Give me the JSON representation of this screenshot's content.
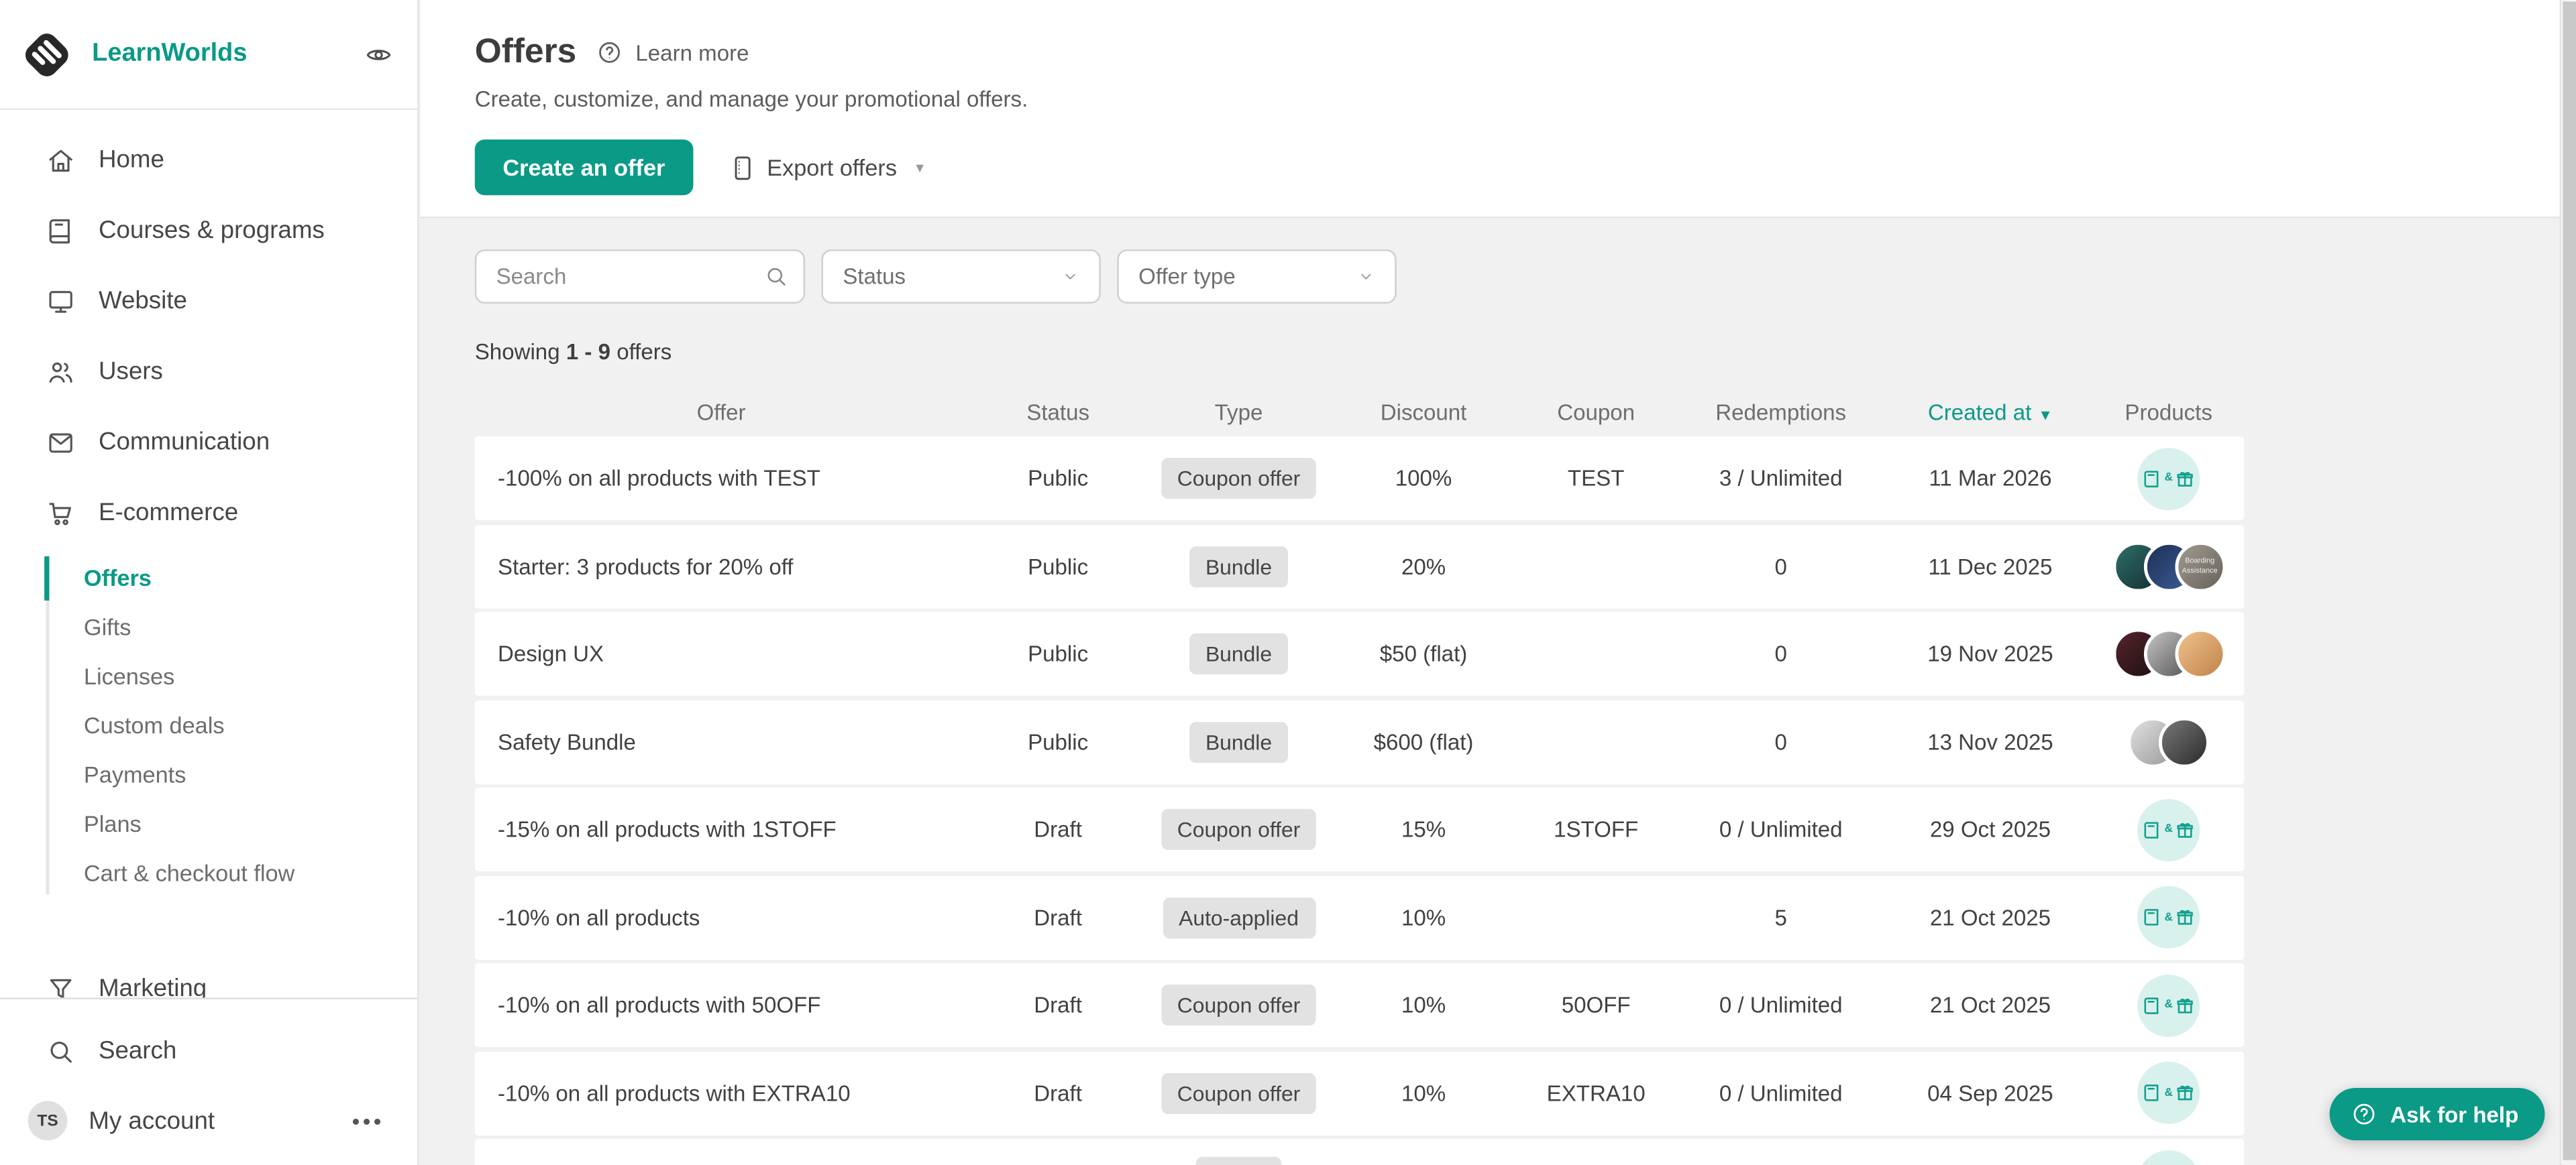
{
  "colors": {
    "accent": "#0a9a86",
    "accent_light": "#d9f1ed",
    "page_bg": "#f1f1f2",
    "badge_bg": "#e2e2e2",
    "text_dark": "#414141",
    "text_gray": "#6e6e6e"
  },
  "sidebar": {
    "brand": "LearnWorlds",
    "nav": [
      {
        "label": "Home",
        "icon": "home"
      },
      {
        "label": "Courses & programs",
        "icon": "book"
      },
      {
        "label": "Website",
        "icon": "monitor"
      },
      {
        "label": "Users",
        "icon": "users"
      },
      {
        "label": "Communication",
        "icon": "mail"
      },
      {
        "label": "E-commerce",
        "icon": "cart"
      }
    ],
    "ecommerce_submenu": [
      {
        "label": "Offers",
        "active": true
      },
      {
        "label": "Gifts",
        "active": false
      },
      {
        "label": "Licenses",
        "active": false
      },
      {
        "label": "Custom deals",
        "active": false
      },
      {
        "label": "Payments",
        "active": false
      },
      {
        "label": "Plans",
        "active": false
      },
      {
        "label": "Cart & checkout flow",
        "active": false
      }
    ],
    "marketing": {
      "label": "Marketing",
      "icon": "funnel"
    },
    "search_label": "Search",
    "account": {
      "initials": "TS",
      "label": "My account"
    }
  },
  "header": {
    "title": "Offers",
    "learn_more": "Learn more",
    "subtitle": "Create, customize, and manage your promotional offers.",
    "create_button": "Create an offer",
    "export_button": "Export offers"
  },
  "filters": {
    "search_placeholder": "Search",
    "status": "Status",
    "offer_type": "Offer type"
  },
  "showing": {
    "prefix": "Showing",
    "range": "1 - 9",
    "suffix": "offers"
  },
  "table": {
    "columns": [
      "Offer",
      "Status",
      "Type",
      "Discount",
      "Coupon",
      "Redemptions",
      "Created at",
      "Products"
    ],
    "sort_column": "Created at",
    "sort_direction": "desc",
    "rows": [
      {
        "name": "-100% on all products with TEST",
        "status": "Public",
        "type": "Coupon offer",
        "discount": "100%",
        "coupon": "TEST",
        "redemptions": "3 / Unlimited",
        "created": "11 Mar 2026",
        "products": {
          "kind": "all-products"
        }
      },
      {
        "name": "Starter: 3 products for 20% off",
        "status": "Public",
        "type": "Bundle",
        "discount": "20%",
        "coupon": "",
        "redemptions": "0",
        "created": "11 Dec 2025",
        "products": {
          "kind": "thumbnails",
          "thumbs": [
            [
              "#2f6e68",
              "#142e33"
            ],
            [
              "#1e2f55",
              "#3c5c96"
            ],
            [
              "#a09a90",
              "#67625a"
            ]
          ],
          "thumb_label": "Boarding Assistance"
        }
      },
      {
        "name": "Design UX",
        "status": "Public",
        "type": "Bundle",
        "discount": "$50 (flat)",
        "coupon": "",
        "redemptions": "0",
        "created": "19 Nov 2025",
        "products": {
          "kind": "thumbnails",
          "thumbs": [
            [
              "#54262c",
              "#1d0d10"
            ],
            [
              "#c4c4c4",
              "#555555"
            ],
            [
              "#efc18e",
              "#c08448"
            ]
          ]
        }
      },
      {
        "name": "Safety Bundle",
        "status": "Public",
        "type": "Bundle",
        "discount": "$600 (flat)",
        "coupon": "",
        "redemptions": "0",
        "created": "13 Nov 2025",
        "products": {
          "kind": "thumbnails",
          "thumbs": [
            [
              "#e0e0e0",
              "#9a9a9a"
            ],
            [
              "#777777",
              "#2c2c2c"
            ]
          ]
        }
      },
      {
        "name": "-15% on all products with 1STOFF",
        "status": "Draft",
        "type": "Coupon offer",
        "discount": "15%",
        "coupon": "1STOFF",
        "redemptions": "0 / Unlimited",
        "created": "29 Oct 2025",
        "products": {
          "kind": "all-products"
        }
      },
      {
        "name": "-10% on all products",
        "status": "Draft",
        "type": "Auto-applied",
        "discount": "10%",
        "coupon": "",
        "redemptions": "5",
        "created": "21 Oct 2025",
        "products": {
          "kind": "all-products"
        }
      },
      {
        "name": "-10% on all products with 50OFF",
        "status": "Draft",
        "type": "Coupon offer",
        "discount": "10%",
        "coupon": "50OFF",
        "redemptions": "0 / Unlimited",
        "created": "21 Oct 2025",
        "products": {
          "kind": "all-products"
        }
      },
      {
        "name": "-10% on all products with EXTRA10",
        "status": "Draft",
        "type": "Coupon offer",
        "discount": "10%",
        "coupon": "EXTRA10",
        "redemptions": "0 / Unlimited",
        "created": "04 Sep 2025",
        "products": {
          "kind": "all-products"
        }
      },
      {
        "name": "",
        "status": "",
        "type": "",
        "discount": "",
        "coupon": "",
        "redemptions": "",
        "created": "",
        "products": {
          "kind": "all-products"
        },
        "partial": true
      }
    ]
  },
  "help_button": {
    "label": "Ask for help"
  }
}
